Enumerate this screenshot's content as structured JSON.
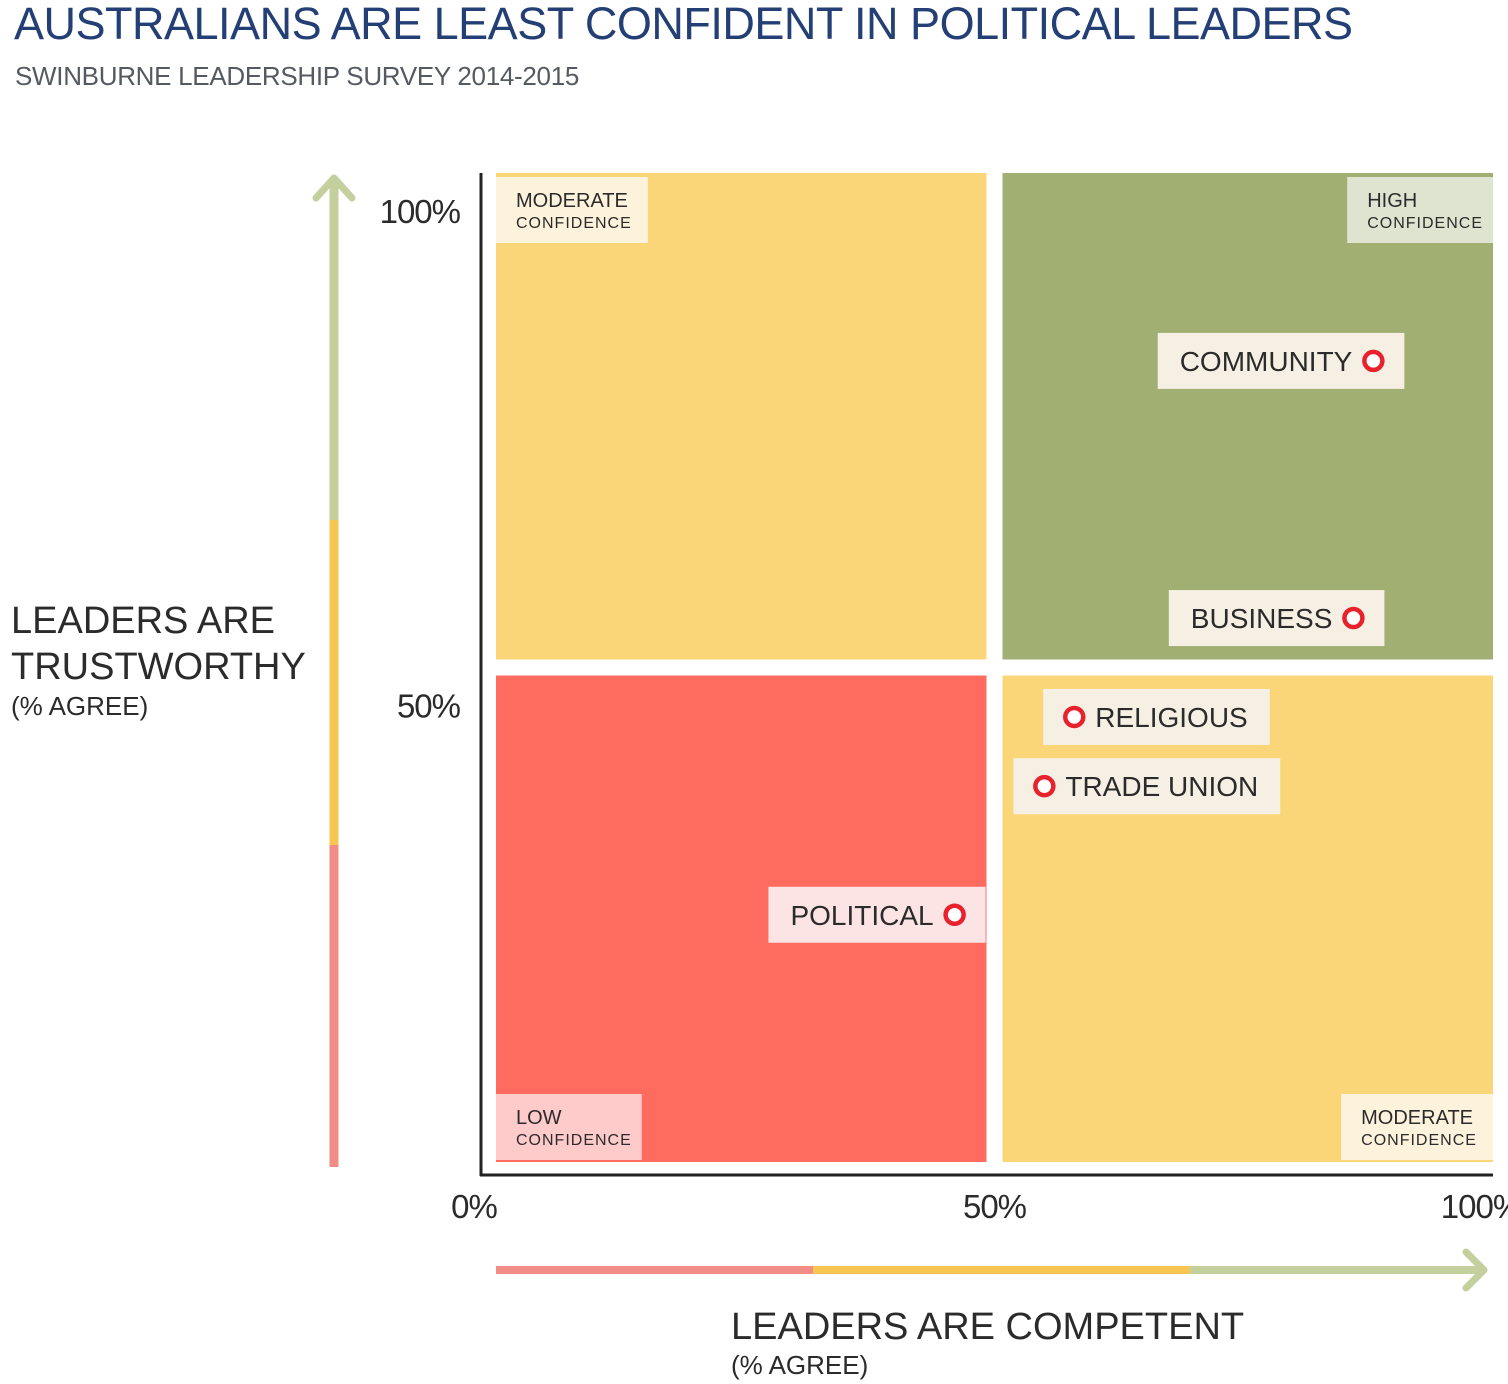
{
  "title": "AUSTRALIANS ARE LEAST CONFIDENT IN POLITICAL LEADERS",
  "subtitle": "SWINBURNE LEADERSHIP SURVEY 2014-2015",
  "y_axis_line1": "LEADERS ARE",
  "y_axis_line2": "TRUSTWORTHY",
  "y_axis_unit": "(% AGREE)",
  "x_axis_label": "LEADERS ARE COMPETENT",
  "x_axis_unit": "(% AGREE)",
  "colors": {
    "moderate": "#fbd679",
    "high": "#a1af72",
    "low": "#fe6b5f",
    "moderate_tag": "#fdf3dc",
    "high_tag": "#dfe4d0",
    "low_tag": "#fecaca",
    "point_label_bg": "#f6f0e4",
    "political_label_bg": "#fde4e4",
    "marker": "#e8222d",
    "axis_low": "#f18c86",
    "axis_mid": "#f6c650",
    "axis_high": "#c4cf9e",
    "axis_line": "#222222"
  },
  "chart_data": {
    "type": "scatter",
    "title": "AUSTRALIANS ARE LEAST CONFIDENT IN POLITICAL LEADERS",
    "subtitle": "SWINBURNE LEADERSHIP SURVEY 2014-2015",
    "xlabel": "LEADERS ARE COMPETENT (% AGREE)",
    "ylabel": "LEADERS ARE TRUSTWORTHY (% AGREE)",
    "xlim": [
      0,
      100
    ],
    "ylim": [
      0,
      100
    ],
    "x_ticks": [
      "0%",
      "50%",
      "100%"
    ],
    "y_ticks": [
      "100%",
      "50%"
    ],
    "quadrants": [
      {
        "id": "top-left",
        "label_line1": "MODERATE",
        "label_line2": "CONFIDENCE",
        "level": "moderate"
      },
      {
        "id": "top-right",
        "label_line1": "HIGH",
        "label_line2": "CONFIDENCE",
        "level": "high"
      },
      {
        "id": "bottom-left",
        "label_line1": "LOW",
        "label_line2": "CONFIDENCE",
        "level": "low"
      },
      {
        "id": "bottom-right",
        "label_line1": "MODERATE",
        "label_line2": "CONFIDENCE",
        "level": "moderate"
      }
    ],
    "points": [
      {
        "name": "COMMUNITY",
        "x": 88,
        "y": 81,
        "label_side": "left"
      },
      {
        "name": "BUSINESS",
        "x": 86,
        "y": 55,
        "label_side": "left"
      },
      {
        "name": "RELIGIOUS",
        "x": 58,
        "y": 45,
        "label_side": "right"
      },
      {
        "name": "TRADE UNION",
        "x": 55,
        "y": 38,
        "label_side": "right"
      },
      {
        "name": "POLITICAL",
        "x": 46,
        "y": 25,
        "label_side": "left"
      }
    ]
  }
}
